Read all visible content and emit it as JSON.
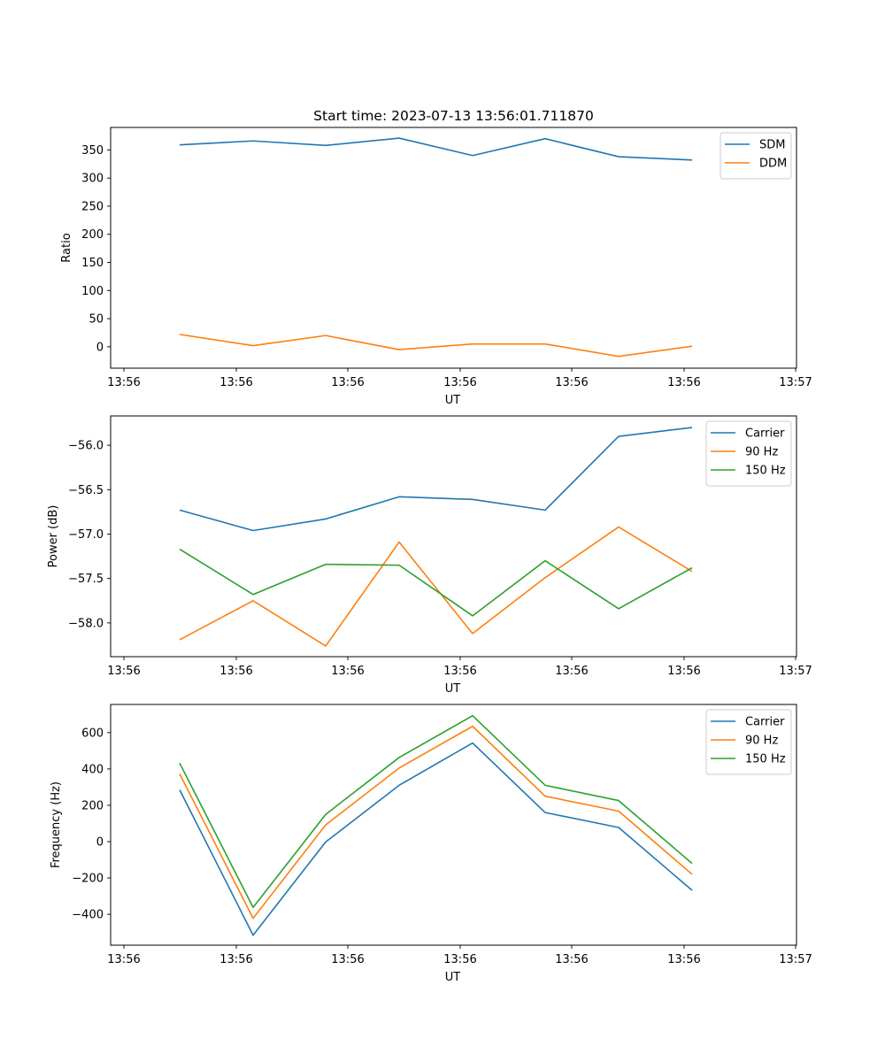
{
  "chart_data": [
    {
      "type": "line",
      "title": "Start time: 2023-07-13 13:56:01.711870",
      "xlabel": "UT",
      "ylabel": "Ratio",
      "x_ticks": [
        "13:56",
        "13:56",
        "13:56",
        "13:56",
        "13:56",
        "13:56",
        "13:57"
      ],
      "ylim": [
        -38,
        390
      ],
      "y_ticks": [
        "0",
        "50",
        "100",
        "150",
        "200",
        "250",
        "300",
        "350"
      ],
      "y_tick_values": [
        0,
        50,
        100,
        150,
        200,
        250,
        300,
        350
      ],
      "legend_position": "top-right",
      "series": [
        {
          "name": "SDM",
          "color": "#1f77b4",
          "values": [
            359,
            366,
            358,
            371,
            340,
            370,
            338,
            332
          ]
        },
        {
          "name": "DDM",
          "color": "#ff7f0e",
          "values": [
            22,
            2,
            20,
            -5,
            5,
            5,
            -17,
            1
          ]
        }
      ]
    },
    {
      "type": "line",
      "title": "",
      "xlabel": "UT",
      "ylabel": "Power (dB)",
      "x_ticks": [
        "13:56",
        "13:56",
        "13:56",
        "13:56",
        "13:56",
        "13:56",
        "13:57"
      ],
      "ylim": [
        -58.38,
        -55.67
      ],
      "y_ticks": [
        "−58.0",
        "−57.5",
        "−57.0",
        "−56.5",
        "−56.0"
      ],
      "y_tick_values": [
        -58.0,
        -57.5,
        -57.0,
        -56.5,
        -56.0
      ],
      "legend_position": "top-right",
      "series": [
        {
          "name": "Carrier",
          "color": "#1f77b4",
          "values": [
            -56.73,
            -56.96,
            -56.83,
            -56.58,
            -56.61,
            -56.73,
            -55.9,
            -55.8
          ]
        },
        {
          "name": "90 Hz",
          "color": "#ff7f0e",
          "values": [
            -58.19,
            -57.75,
            -58.26,
            -57.09,
            -58.12,
            -57.49,
            -56.92,
            -57.42
          ]
        },
        {
          "name": "150 Hz",
          "color": "#2ca02c",
          "values": [
            -57.17,
            -57.68,
            -57.34,
            -57.35,
            -57.92,
            -57.3,
            -57.84,
            -57.38
          ]
        }
      ]
    },
    {
      "type": "line",
      "title": "",
      "xlabel": "UT",
      "ylabel": "Frequency (Hz)",
      "x_ticks": [
        "13:56",
        "13:56",
        "13:56",
        "13:56",
        "13:56",
        "13:56",
        "13:57"
      ],
      "ylim": [
        -570,
        755
      ],
      "y_ticks": [
        "−400",
        "−200",
        "0",
        "200",
        "400",
        "600"
      ],
      "y_tick_values": [
        -400,
        -200,
        0,
        200,
        400,
        600
      ],
      "legend_position": "top-right",
      "series": [
        {
          "name": "Carrier",
          "color": "#1f77b4",
          "values": [
            285,
            -515,
            -2,
            310,
            543,
            160,
            78,
            -268
          ]
        },
        {
          "name": "90 Hz",
          "color": "#ff7f0e",
          "values": [
            373,
            -422,
            92,
            405,
            635,
            250,
            168,
            -180
          ]
        },
        {
          "name": "150 Hz",
          "color": "#2ca02c",
          "values": [
            432,
            -362,
            150,
            463,
            693,
            310,
            226,
            -120
          ]
        }
      ]
    }
  ]
}
